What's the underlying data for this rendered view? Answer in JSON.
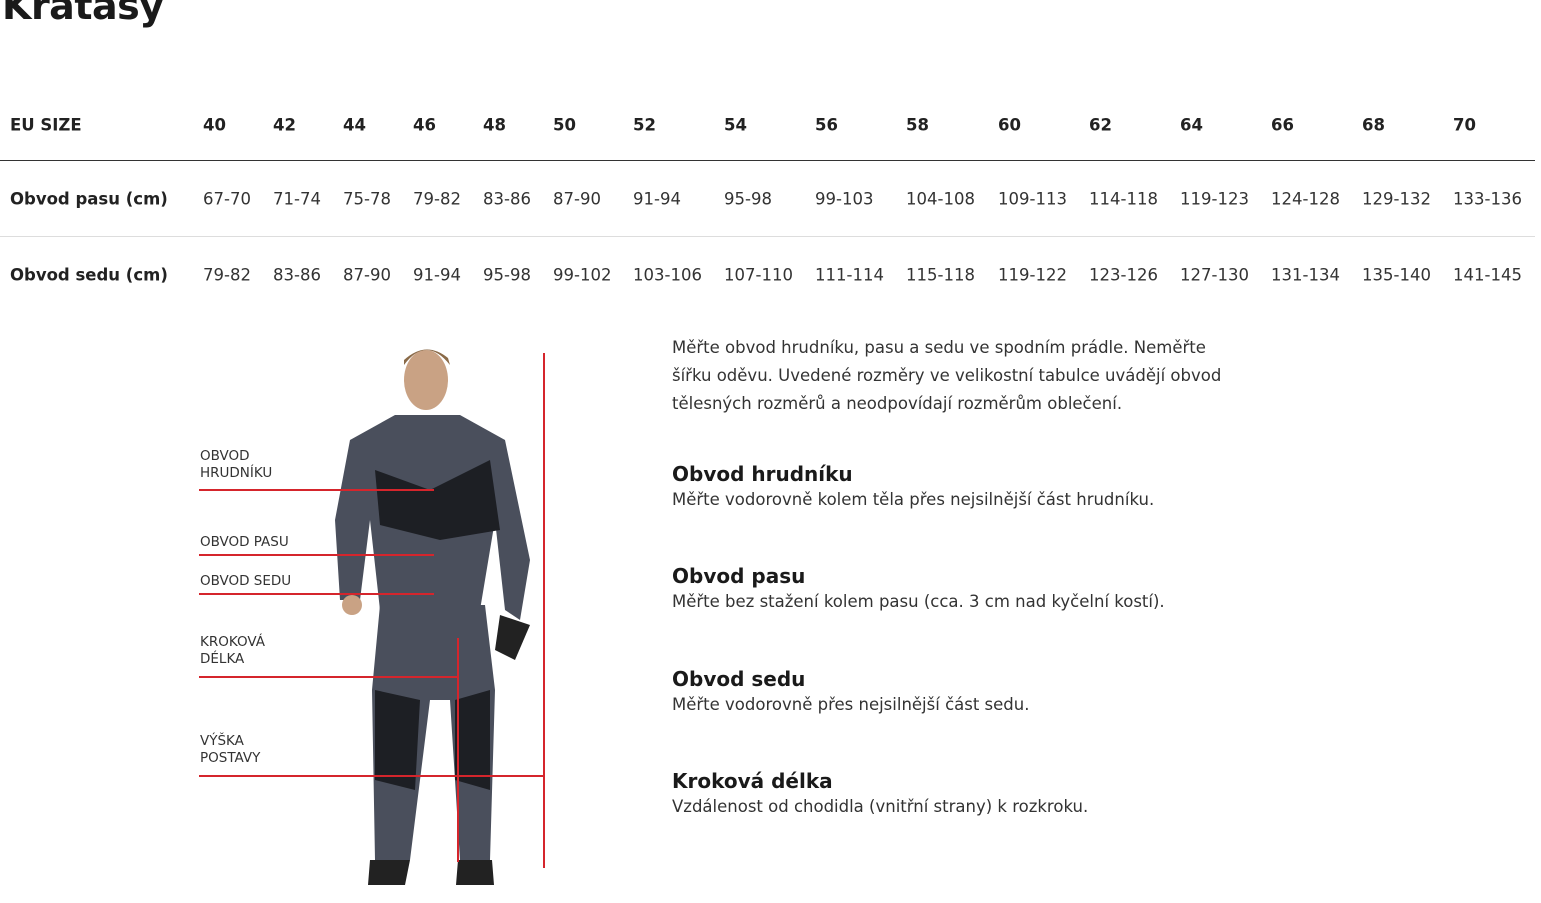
{
  "title": "Kraťasy",
  "table": {
    "header_label": "EU SIZE",
    "sizes": [
      "40",
      "42",
      "44",
      "46",
      "48",
      "50",
      "52",
      "54",
      "56",
      "58",
      "60",
      "62",
      "64",
      "66",
      "68",
      "70"
    ],
    "rows": [
      {
        "label": "Obvod pasu (cm)",
        "values": [
          "67-70",
          "71-74",
          "75-78",
          "79-82",
          "83-86",
          "87-90",
          "91-94",
          "95-98",
          "99-103",
          "104-108",
          "109-113",
          "114-118",
          "119-123",
          "124-128",
          "129-132",
          "133-136"
        ]
      },
      {
        "label": "Obvod sedu (cm)",
        "values": [
          "79-82",
          "83-86",
          "87-90",
          "91-94",
          "95-98",
          "99-102",
          "103-106",
          "107-110",
          "111-114",
          "115-118",
          "119-122",
          "123-126",
          "127-130",
          "131-134",
          "135-140",
          "141-145"
        ]
      }
    ]
  },
  "figure": {
    "labels": [
      "OBVOD\nHRUDNÍKU",
      "OBVOD PASU",
      "OBVOD SEDU",
      "KROKOVÁ\nDÉLKA",
      "VÝŠKA\nPOSTAVY"
    ],
    "line_color": "#d5252c"
  },
  "info": {
    "intro": "Měřte obvod hrudníku, pasu a sedu ve spodním prádle. Neměřte šířku oděvu. Uvedené rozměry ve velikostní tabulce uvádějí obvod tělesných rozměrů a neodpovídají rozměrům oblečení.",
    "sections": [
      {
        "heading": "Obvod hrudníku",
        "text": "Měřte vodorovně kolem těla přes nejsilnější část hrudníku."
      },
      {
        "heading": "Obvod pasu",
        "text": "Měřte bez stažení kolem pasu (cca. 3 cm nad kyčelní kostí)."
      },
      {
        "heading": "Obvod sedu",
        "text": "Měřte vodorovně přes nejsilnější část sedu."
      },
      {
        "heading": "Kroková délka",
        "text": "Vzdálenost od chodidla (vnitřní strany) k rozkroku."
      }
    ]
  }
}
